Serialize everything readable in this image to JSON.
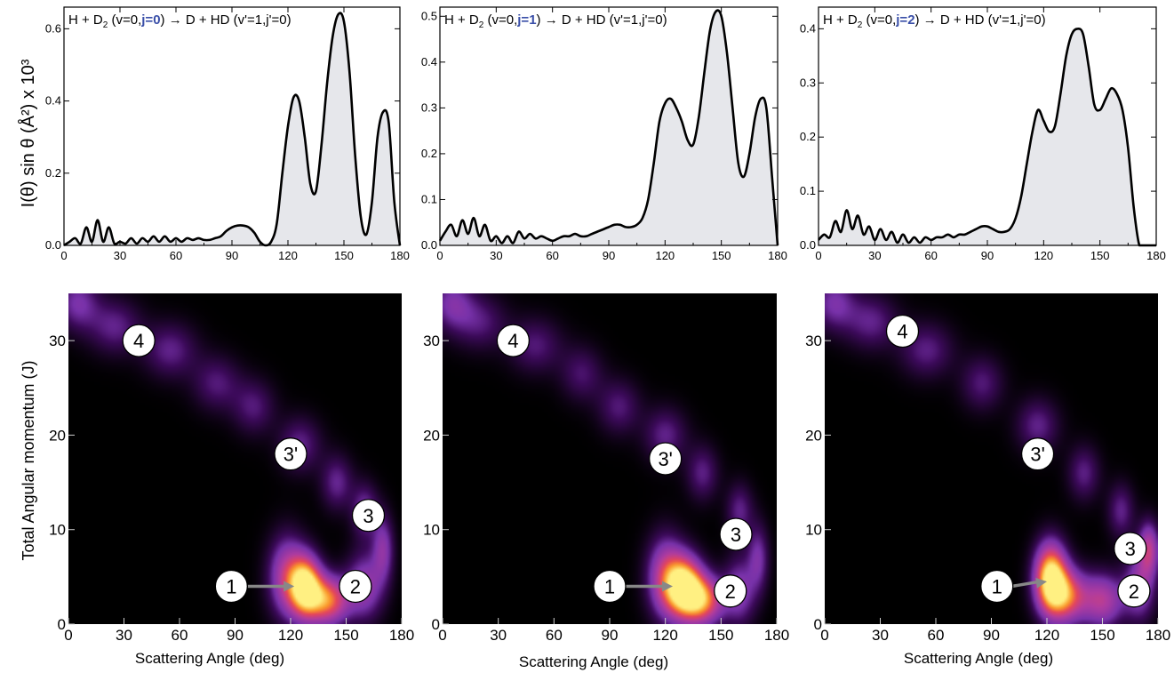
{
  "figure": {
    "ylabel_top": "I(θ) sin θ (Å²) x 10³",
    "ylabel_bottom": "Total Angular momentum (J)",
    "xlabel": "Scattering Angle (deg)"
  },
  "colors": {
    "line": "#000000",
    "fill": "#e6e7eb",
    "highlight": "#3a4fa8",
    "arrow": "#888888",
    "map_background": "#000000"
  },
  "chart_data": [
    {
      "type": "area",
      "title_parts": [
        "H + D",
        "2",
        " (v=0,",
        "j=0",
        ")  → D + HD (v'=1,j'=0)"
      ],
      "xlim": [
        0,
        180
      ],
      "ylim": [
        0,
        0.66
      ],
      "xticks": [
        0,
        30,
        60,
        90,
        120,
        150,
        180
      ],
      "yticks": [
        0.0,
        0.2,
        0.4,
        0.6
      ],
      "ytick_labels": [
        "0.0",
        "0.2",
        "0.4",
        "0.6"
      ],
      "x": [
        0,
        3,
        6,
        9,
        12,
        15,
        18,
        21,
        24,
        27,
        30,
        33,
        36,
        39,
        42,
        45,
        48,
        51,
        54,
        57,
        60,
        63,
        66,
        69,
        72,
        75,
        78,
        81,
        84,
        87,
        90,
        93,
        96,
        99,
        102,
        105,
        108,
        111,
        114,
        117,
        120,
        123,
        126,
        129,
        132,
        135,
        138,
        141,
        144,
        147,
        150,
        153,
        156,
        159,
        162,
        165,
        168,
        171,
        174,
        177,
        180
      ],
      "y": [
        0.0,
        0.01,
        0.02,
        0.005,
        0.05,
        0.01,
        0.07,
        0.01,
        0.05,
        0.005,
        0.01,
        0.005,
        0.02,
        0.005,
        0.02,
        0.01,
        0.025,
        0.01,
        0.025,
        0.01,
        0.02,
        0.01,
        0.02,
        0.015,
        0.02,
        0.015,
        0.015,
        0.02,
        0.025,
        0.04,
        0.05,
        0.055,
        0.055,
        0.05,
        0.035,
        0.01,
        0.0,
        0.01,
        0.06,
        0.2,
        0.33,
        0.41,
        0.4,
        0.3,
        0.17,
        0.15,
        0.28,
        0.45,
        0.58,
        0.64,
        0.62,
        0.48,
        0.25,
        0.08,
        0.03,
        0.12,
        0.3,
        0.37,
        0.34,
        0.12,
        0.0
      ]
    },
    {
      "type": "area",
      "title_parts": [
        "H + D",
        "2",
        " (v=0,",
        "j=1",
        ")  → D + HD (v'=1,j'=0)"
      ],
      "xlim": [
        0,
        180
      ],
      "ylim": [
        0,
        0.52
      ],
      "xticks": [
        0,
        30,
        60,
        90,
        120,
        150,
        180
      ],
      "yticks": [
        0.0,
        0.1,
        0.2,
        0.3,
        0.4,
        0.5
      ],
      "ytick_labels": [
        "0.0",
        "0.1",
        "0.2",
        "0.3",
        "0.4",
        "0.5"
      ],
      "x": [
        0,
        3,
        6,
        9,
        12,
        15,
        18,
        21,
        24,
        27,
        30,
        33,
        36,
        39,
        42,
        45,
        48,
        51,
        54,
        57,
        60,
        63,
        66,
        69,
        72,
        75,
        78,
        81,
        84,
        87,
        90,
        93,
        96,
        99,
        102,
        105,
        108,
        111,
        114,
        117,
        120,
        123,
        126,
        129,
        132,
        135,
        138,
        141,
        144,
        147,
        150,
        153,
        156,
        159,
        162,
        165,
        168,
        171,
        174,
        177,
        180
      ],
      "y": [
        0.01,
        0.03,
        0.045,
        0.02,
        0.055,
        0.025,
        0.06,
        0.02,
        0.045,
        0.01,
        0.02,
        0.005,
        0.02,
        0.005,
        0.03,
        0.015,
        0.025,
        0.015,
        0.02,
        0.015,
        0.01,
        0.015,
        0.02,
        0.02,
        0.025,
        0.02,
        0.02,
        0.025,
        0.03,
        0.035,
        0.04,
        0.045,
        0.045,
        0.04,
        0.04,
        0.045,
        0.06,
        0.1,
        0.18,
        0.27,
        0.31,
        0.32,
        0.3,
        0.27,
        0.23,
        0.22,
        0.28,
        0.38,
        0.47,
        0.51,
        0.5,
        0.42,
        0.3,
        0.18,
        0.15,
        0.2,
        0.28,
        0.32,
        0.3,
        0.15,
        0.0
      ]
    },
    {
      "type": "area",
      "title_parts": [
        "H + D",
        "2",
        " (v=0,",
        "j=2",
        ")  → D + HD (v'=1,j'=0)"
      ],
      "xlim": [
        0,
        180
      ],
      "ylim": [
        0,
        0.44
      ],
      "xticks": [
        0,
        30,
        60,
        90,
        120,
        150,
        180
      ],
      "yticks": [
        0.0,
        0.1,
        0.2,
        0.3,
        0.4
      ],
      "ytick_labels": [
        "0.0",
        "0.1",
        "0.2",
        "0.3",
        "0.4"
      ],
      "x": [
        0,
        3,
        6,
        9,
        12,
        15,
        18,
        21,
        24,
        27,
        30,
        33,
        36,
        39,
        42,
        45,
        48,
        51,
        54,
        57,
        60,
        63,
        66,
        69,
        72,
        75,
        78,
        81,
        84,
        87,
        90,
        93,
        96,
        99,
        102,
        105,
        108,
        111,
        114,
        117,
        120,
        123,
        126,
        129,
        132,
        135,
        138,
        141,
        144,
        147,
        150,
        153,
        156,
        159,
        162,
        165,
        168,
        171,
        174,
        177,
        180
      ],
      "y": [
        0.01,
        0.02,
        0.015,
        0.045,
        0.025,
        0.065,
        0.03,
        0.055,
        0.02,
        0.035,
        0.01,
        0.03,
        0.01,
        0.025,
        0.005,
        0.02,
        0.005,
        0.015,
        0.005,
        0.015,
        0.01,
        0.015,
        0.015,
        0.02,
        0.015,
        0.02,
        0.02,
        0.025,
        0.03,
        0.035,
        0.035,
        0.03,
        0.025,
        0.025,
        0.03,
        0.05,
        0.09,
        0.15,
        0.21,
        0.25,
        0.23,
        0.21,
        0.22,
        0.28,
        0.35,
        0.39,
        0.4,
        0.39,
        0.33,
        0.26,
        0.25,
        0.27,
        0.29,
        0.28,
        0.25,
        0.18,
        0.07,
        0.0,
        0.0,
        0.0,
        0.0
      ]
    },
    {
      "type": "heatmap",
      "xlim": [
        0,
        180
      ],
      "ylim": [
        0,
        35
      ],
      "xticks": [
        0,
        30,
        60,
        90,
        120,
        150,
        180
      ],
      "yticks": [
        0,
        10,
        20,
        30
      ],
      "blobs": [
        {
          "x": 128,
          "y": 4,
          "sx": 6,
          "sy": 2.2,
          "a": 1.0
        },
        {
          "x": 140,
          "y": 2.5,
          "sx": 8,
          "sy": 1.8,
          "a": 0.75
        },
        {
          "x": 118,
          "y": 5,
          "sx": 7,
          "sy": 3,
          "a": 0.5
        },
        {
          "x": 160,
          "y": 4,
          "sx": 7,
          "sy": 2.5,
          "a": 0.4
        },
        {
          "x": 170,
          "y": 8,
          "sx": 4,
          "sy": 2.5,
          "a": 0.35
        },
        {
          "x": 160,
          "y": 12,
          "sx": 5,
          "sy": 2,
          "a": 0.3
        },
        {
          "x": 145,
          "y": 15,
          "sx": 6,
          "sy": 2,
          "a": 0.26
        },
        {
          "x": 125,
          "y": 19,
          "sx": 8,
          "sy": 2,
          "a": 0.25
        },
        {
          "x": 100,
          "y": 23,
          "sx": 8,
          "sy": 2,
          "a": 0.22
        },
        {
          "x": 80,
          "y": 25.5,
          "sx": 9,
          "sy": 2,
          "a": 0.22
        },
        {
          "x": 55,
          "y": 29,
          "sx": 10,
          "sy": 2,
          "a": 0.25
        },
        {
          "x": 25,
          "y": 31.5,
          "sx": 10,
          "sy": 2,
          "a": 0.25
        },
        {
          "x": 5,
          "y": 34,
          "sx": 8,
          "sy": 2,
          "a": 0.3
        }
      ],
      "labels": [
        {
          "text": "4",
          "x": 38,
          "y": 30
        },
        {
          "text": "3'",
          "x": 120,
          "y": 18
        },
        {
          "text": "3",
          "x": 162,
          "y": 11.5
        },
        {
          "text": "2",
          "x": 155,
          "y": 4
        },
        {
          "text": "1",
          "x": 88,
          "y": 4
        }
      ],
      "arrow": {
        "x1": 96,
        "y1": 4,
        "x2": 122,
        "y2": 4
      }
    },
    {
      "type": "heatmap",
      "xlim": [
        0,
        180
      ],
      "ylim": [
        0,
        35
      ],
      "xticks": [
        0,
        30,
        60,
        90,
        120,
        150,
        180
      ],
      "yticks": [
        0,
        10,
        20,
        30
      ],
      "blobs": [
        {
          "x": 130,
          "y": 4,
          "sx": 7,
          "sy": 2.2,
          "a": 1.0
        },
        {
          "x": 140,
          "y": 2.5,
          "sx": 8,
          "sy": 1.8,
          "a": 0.75
        },
        {
          "x": 120,
          "y": 5,
          "sx": 7,
          "sy": 3,
          "a": 0.5
        },
        {
          "x": 160,
          "y": 3.5,
          "sx": 6,
          "sy": 2.5,
          "a": 0.35
        },
        {
          "x": 170,
          "y": 7,
          "sx": 4,
          "sy": 2.5,
          "a": 0.3
        },
        {
          "x": 160,
          "y": 12,
          "sx": 5,
          "sy": 2,
          "a": 0.25
        },
        {
          "x": 140,
          "y": 16,
          "sx": 6,
          "sy": 2,
          "a": 0.24
        },
        {
          "x": 120,
          "y": 20,
          "sx": 8,
          "sy": 2,
          "a": 0.25
        },
        {
          "x": 95,
          "y": 23,
          "sx": 8,
          "sy": 2,
          "a": 0.22
        },
        {
          "x": 75,
          "y": 26.5,
          "sx": 8,
          "sy": 2,
          "a": 0.2
        },
        {
          "x": 50,
          "y": 29.5,
          "sx": 10,
          "sy": 2,
          "a": 0.22
        },
        {
          "x": 20,
          "y": 32,
          "sx": 10,
          "sy": 2,
          "a": 0.22
        },
        {
          "x": 5,
          "y": 34,
          "sx": 8,
          "sy": 2,
          "a": 0.3
        }
      ],
      "labels": [
        {
          "text": "4",
          "x": 38,
          "y": 30
        },
        {
          "text": "3'",
          "x": 120,
          "y": 17.5
        },
        {
          "text": "3",
          "x": 158,
          "y": 9.5
        },
        {
          "text": "2",
          "x": 155,
          "y": 3.5
        },
        {
          "text": "1",
          "x": 90,
          "y": 4
        }
      ],
      "arrow": {
        "x1": 98,
        "y1": 4,
        "x2": 124,
        "y2": 4
      }
    },
    {
      "type": "heatmap",
      "xlim": [
        0,
        180
      ],
      "ylim": [
        0,
        35
      ],
      "xticks": [
        0,
        30,
        60,
        90,
        120,
        150,
        180
      ],
      "yticks": [
        0,
        10,
        20,
        30
      ],
      "blobs": [
        {
          "x": 122,
          "y": 5,
          "sx": 6,
          "sy": 2.5,
          "a": 1.0
        },
        {
          "x": 130,
          "y": 3,
          "sx": 8,
          "sy": 2,
          "a": 0.7
        },
        {
          "x": 150,
          "y": 2.5,
          "sx": 8,
          "sy": 2,
          "a": 0.5
        },
        {
          "x": 170,
          "y": 4,
          "sx": 6,
          "sy": 2.5,
          "a": 0.4
        },
        {
          "x": 175,
          "y": 8,
          "sx": 4,
          "sy": 2,
          "a": 0.5
        },
        {
          "x": 160,
          "y": 12,
          "sx": 5,
          "sy": 2,
          "a": 0.25
        },
        {
          "x": 140,
          "y": 16,
          "sx": 6,
          "sy": 2,
          "a": 0.24
        },
        {
          "x": 115,
          "y": 21,
          "sx": 8,
          "sy": 2,
          "a": 0.25
        },
        {
          "x": 85,
          "y": 25.5,
          "sx": 8,
          "sy": 2,
          "a": 0.22
        },
        {
          "x": 55,
          "y": 29,
          "sx": 10,
          "sy": 2,
          "a": 0.24
        },
        {
          "x": 25,
          "y": 32,
          "sx": 10,
          "sy": 2,
          "a": 0.25
        },
        {
          "x": 5,
          "y": 34,
          "sx": 8,
          "sy": 2,
          "a": 0.3
        }
      ],
      "labels": [
        {
          "text": "4",
          "x": 42,
          "y": 31
        },
        {
          "text": "3'",
          "x": 115,
          "y": 18
        },
        {
          "text": "3",
          "x": 165,
          "y": 8
        },
        {
          "text": "2",
          "x": 167,
          "y": 3.5
        },
        {
          "text": "1",
          "x": 93,
          "y": 4
        }
      ],
      "arrow": {
        "x1": 101,
        "y1": 4,
        "x2": 120,
        "y2": 4.5
      }
    }
  ]
}
